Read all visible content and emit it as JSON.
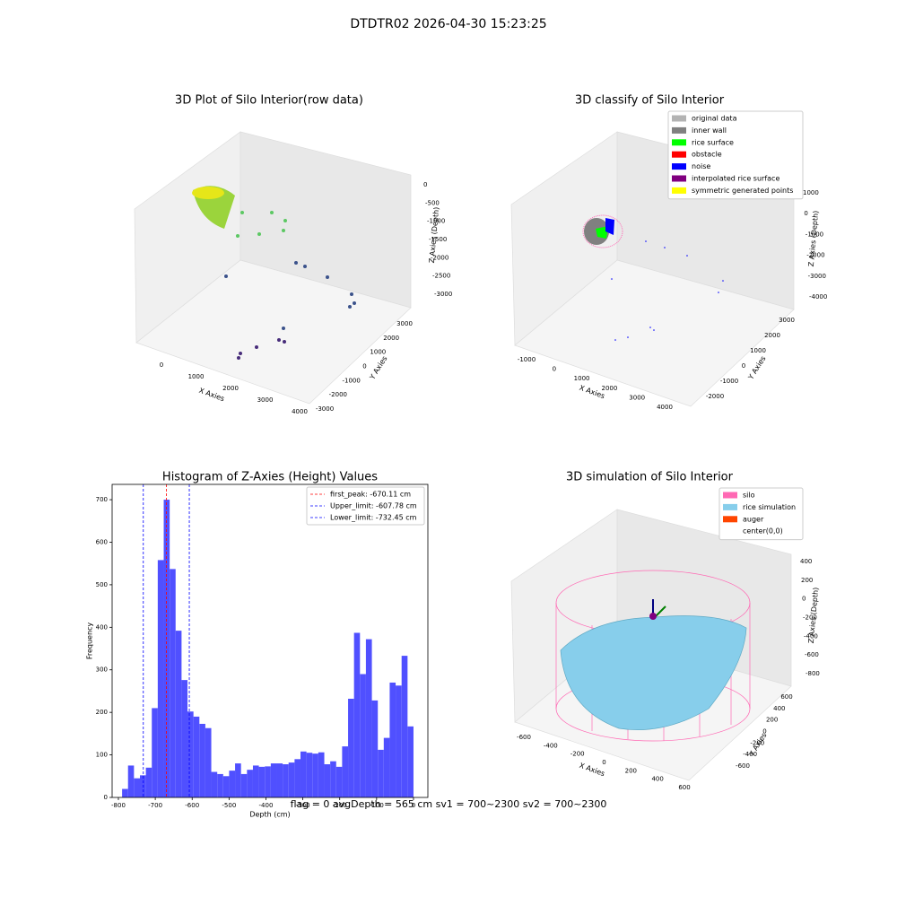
{
  "title": "DTDTR02 2026-04-30 15:23:25",
  "chart_data": [
    {
      "type": "scatter3d",
      "title": "3D Plot of Silo Interior(row data)",
      "xlabel": "X Axies",
      "ylabel": "Y Axies",
      "zlabel": "Z Axies (Depth)",
      "xticks": [
        0,
        1000,
        2000,
        3000,
        4000
      ],
      "yticks": [
        -3000,
        -2000,
        -1000,
        0,
        1000,
        2000,
        3000
      ],
      "zticks": [
        0,
        -500,
        -1000,
        -1500,
        -2000,
        -2500,
        -3000
      ]
    },
    {
      "type": "scatter3d",
      "title": "3D classify of Silo Interior",
      "xlabel": "X Axies",
      "ylabel": "Y Axies",
      "zlabel": "Z Axies (Depth)",
      "xticks": [
        -1000,
        0,
        1000,
        2000,
        3000,
        4000
      ],
      "yticks": [
        -2000,
        -1000,
        0,
        1000,
        2000,
        3000
      ],
      "zticks": [
        1000,
        0,
        -1000,
        -2000,
        -3000,
        -4000
      ],
      "legend": [
        {
          "name": "original data",
          "color": "#b3b3b3"
        },
        {
          "name": "inner wall",
          "color": "#808080"
        },
        {
          "name": "rice surface",
          "color": "#00ff00"
        },
        {
          "name": "obstacle",
          "color": "#ff0000"
        },
        {
          "name": "noise",
          "color": "#0000ff"
        },
        {
          "name": "interpolated rice surface",
          "color": "#800080"
        },
        {
          "name": "symmetric generated points",
          "color": "#ffff00"
        }
      ]
    },
    {
      "type": "histogram",
      "title": "Histogram of Z-Axies (Height) Values",
      "xlabel": "Depth (cm)",
      "ylabel": "Frequency",
      "color": "#5050ff",
      "bins": [
        -790,
        -773.9,
        -757.8,
        -741.6,
        -725.5,
        -709.4,
        -693.3,
        -677.1,
        -661.0,
        -644.9,
        -628.8,
        -612.7,
        -596.5,
        -580.4,
        -564.3,
        -548.2,
        -532.0,
        -515.9,
        -499.8,
        -483.7,
        -467.6,
        -451.4,
        -435.3,
        -419.2,
        -403.1,
        -386.9,
        -370.8,
        -354.7,
        -338.6,
        -322.4,
        -306.3,
        -290.2,
        -274.1,
        -258.0,
        -241.8,
        -225.7,
        -209.6,
        -193.5,
        -177.3,
        -161.2,
        -145.1,
        -129.0,
        -112.8,
        -96.7,
        -80.6,
        -64.5,
        -48.4,
        -32.2,
        -16.1,
        0
      ],
      "values": [
        20,
        75,
        45,
        52,
        70,
        210,
        558,
        700,
        537,
        392,
        276,
        202,
        190,
        173,
        163,
        60,
        55,
        50,
        63,
        80,
        55,
        65,
        75,
        72,
        73,
        80,
        80,
        78,
        82,
        90,
        108,
        105,
        103,
        106,
        78,
        85,
        72,
        120,
        232,
        387,
        290,
        372,
        228,
        112,
        140,
        270,
        263,
        333,
        167
      ],
      "xlim": [
        -817,
        39
      ],
      "ylim": [
        0,
        736
      ],
      "xticks": [
        -800,
        -700,
        -600,
        -500,
        -400,
        -300,
        -200,
        -100,
        0
      ],
      "yticks": [
        0,
        100,
        200,
        300,
        400,
        500,
        600,
        700
      ],
      "lines": [
        {
          "label": "first_peak: -670.11 cm",
          "value": -670.11,
          "color": "#ff0000"
        },
        {
          "label": "Upper_limit: -607.78 cm",
          "value": -607.78,
          "color": "#0000ff"
        },
        {
          "label": "Lower_limit: -732.45 cm",
          "value": -732.45,
          "color": "#0000ff"
        }
      ]
    },
    {
      "type": "surface3d",
      "title": "3D simulation of Silo Interior",
      "xlabel": "X Axies",
      "ylabel": "Y Axies",
      "zlabel": "Z Axies (Depth)",
      "xticks": [
        -600,
        -400,
        -200,
        0,
        200,
        400,
        600
      ],
      "yticks": [
        -600,
        -400,
        -200,
        0,
        200,
        400,
        600
      ],
      "zticks": [
        400,
        200,
        0,
        -200,
        -400,
        -600,
        -800
      ],
      "legend": [
        {
          "name": "silo",
          "color": "#ff69b4"
        },
        {
          "name": "rice simulation",
          "color": "#87ceeb"
        },
        {
          "name": "auger",
          "color": "#ff4500"
        },
        {
          "name": "center(0,0)",
          "color": "#ffffff"
        }
      ]
    }
  ],
  "footer": "flag = 0     avgDepth = 565 cm  sv1 = 700~2300  sv2 = 700~2300"
}
